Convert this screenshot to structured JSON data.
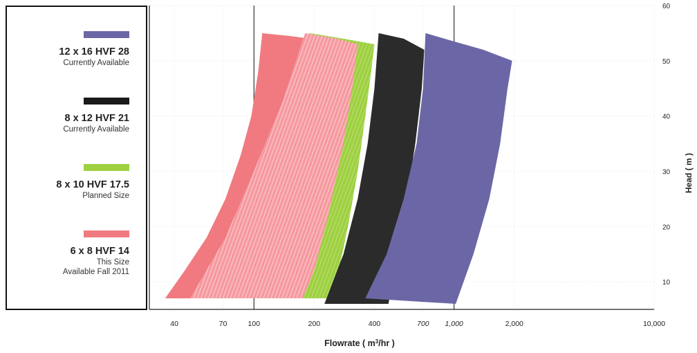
{
  "chart_data": {
    "type": "area",
    "title": "",
    "xlabel_pre": "Flowrate ( m",
    "xlabel_sup": "3",
    "xlabel_post": "/hr )",
    "ylabel": "Head ( m )",
    "x_scale": "log",
    "xlim": [
      30,
      10000
    ],
    "ylim": [
      5,
      60
    ],
    "x_ticks": [
      {
        "value": 40,
        "label": "40"
      },
      {
        "value": 70,
        "label": "70"
      },
      {
        "value": 100,
        "label": "100"
      },
      {
        "value": 200,
        "label": "200"
      },
      {
        "value": 400,
        "label": "400"
      },
      {
        "value": 700,
        "label": "700"
      },
      {
        "value": 1000,
        "label": "1,000"
      },
      {
        "value": 2000,
        "label": "2,000"
      },
      {
        "value": 10000,
        "label": "10,000"
      }
    ],
    "y_ticks": [
      {
        "value": 10,
        "label": "10"
      },
      {
        "value": 20,
        "label": "20"
      },
      {
        "value": 30,
        "label": "30"
      },
      {
        "value": 40,
        "label": "40"
      },
      {
        "value": 50,
        "label": "50"
      },
      {
        "value": 60,
        "label": "60"
      }
    ],
    "grid": true,
    "legend_position": "left",
    "series": [
      {
        "name": "6 x 8 HVF 14",
        "color": "#f07a80",
        "range": [
          [
            36,
            7
          ],
          [
            107,
            7
          ],
          [
            112,
            55
          ],
          [
            190,
            55
          ],
          [
            130,
            7
          ]
        ],
        "boundary_left": [
          [
            36,
            7
          ],
          [
            45,
            12
          ],
          [
            58,
            18
          ],
          [
            72,
            25
          ],
          [
            86,
            33
          ],
          [
            97,
            40
          ],
          [
            105,
            48
          ],
          [
            110,
            55
          ]
        ],
        "top_edge": [
          [
            110,
            55
          ],
          [
            150,
            54.5
          ],
          [
            190,
            54
          ]
        ],
        "boundary_right": [
          [
            190,
            54
          ],
          [
            178,
            45
          ],
          [
            163,
            35
          ],
          [
            148,
            25
          ],
          [
            138,
            15
          ],
          [
            130,
            7
          ]
        ]
      },
      {
        "name": "8 x 10 HVF 17.5",
        "color": "#9ed040",
        "boundary_left": [
          [
            70,
            7
          ],
          [
            95,
            15
          ],
          [
            118,
            25
          ],
          [
            145,
            35
          ],
          [
            168,
            45
          ],
          [
            190,
            55
          ]
        ],
        "top_edge": [
          [
            190,
            55
          ],
          [
            280,
            54
          ],
          [
            400,
            53
          ]
        ],
        "boundary_right": [
          [
            400,
            53
          ],
          [
            385,
            48
          ],
          [
            360,
            40
          ],
          [
            330,
            30
          ],
          [
            295,
            20
          ],
          [
            265,
            12
          ],
          [
            240,
            7
          ]
        ]
      },
      {
        "name": "8 x 12 HVF 21",
        "color": "#2b2b2b",
        "boundary_left": [
          [
            225,
            6
          ],
          [
            280,
            15
          ],
          [
            330,
            25
          ],
          [
            370,
            35
          ],
          [
            400,
            45
          ],
          [
            420,
            55
          ]
        ],
        "top_edge": [
          [
            420,
            55
          ],
          [
            560,
            54
          ],
          [
            710,
            52
          ]
        ],
        "boundary_right": [
          [
            710,
            52
          ],
          [
            690,
            45
          ],
          [
            640,
            35
          ],
          [
            580,
            25
          ],
          [
            520,
            15
          ],
          [
            470,
            6
          ]
        ]
      },
      {
        "name": "12 x 16 HVF 28",
        "color": "#6b67a6",
        "boundary_left": [
          [
            360,
            7
          ],
          [
            460,
            15
          ],
          [
            560,
            25
          ],
          [
            650,
            35
          ],
          [
            700,
            45
          ],
          [
            720,
            55
          ]
        ],
        "top_edge": [
          [
            720,
            55
          ],
          [
            1000,
            53.5
          ],
          [
            1400,
            52
          ],
          [
            1950,
            50
          ]
        ],
        "boundary_right": [
          [
            1950,
            50
          ],
          [
            1850,
            45
          ],
          [
            1700,
            35
          ],
          [
            1500,
            25
          ],
          [
            1250,
            15
          ],
          [
            1020,
            6
          ]
        ]
      },
      {
        "name": "6 x 8 HVF 14",
        "color": "#f9a9ab",
        "hatched": true,
        "boundary_left": [
          [
            48,
            7
          ],
          [
            72,
            18
          ],
          [
            100,
            30
          ],
          [
            140,
            43
          ],
          [
            180,
            55
          ]
        ],
        "top_edge": [
          [
            180,
            55
          ],
          [
            260,
            54
          ],
          [
            330,
            53
          ]
        ],
        "boundary_right": [
          [
            330,
            53
          ],
          [
            310,
            45
          ],
          [
            280,
            35
          ],
          [
            235,
            22
          ],
          [
            200,
            12
          ],
          [
            175,
            7
          ]
        ]
      }
    ]
  },
  "legend": [
    {
      "name": "12 x 16 HVF 28",
      "note_lines": [
        "Currently Available"
      ],
      "color": "#6b67a6"
    },
    {
      "name": "8 x 12 HVF 21",
      "note_lines": [
        "Currently Available"
      ],
      "color": "#1a1a1a"
    },
    {
      "name": "8 x 10 HVF 17.5",
      "note_lines": [
        "Planned Size"
      ],
      "color": "#9ed040"
    },
    {
      "name": "6 x 8 HVF 14",
      "note_lines": [
        "This Size",
        "Available Fall 2011"
      ],
      "color": "#f07a80"
    }
  ]
}
